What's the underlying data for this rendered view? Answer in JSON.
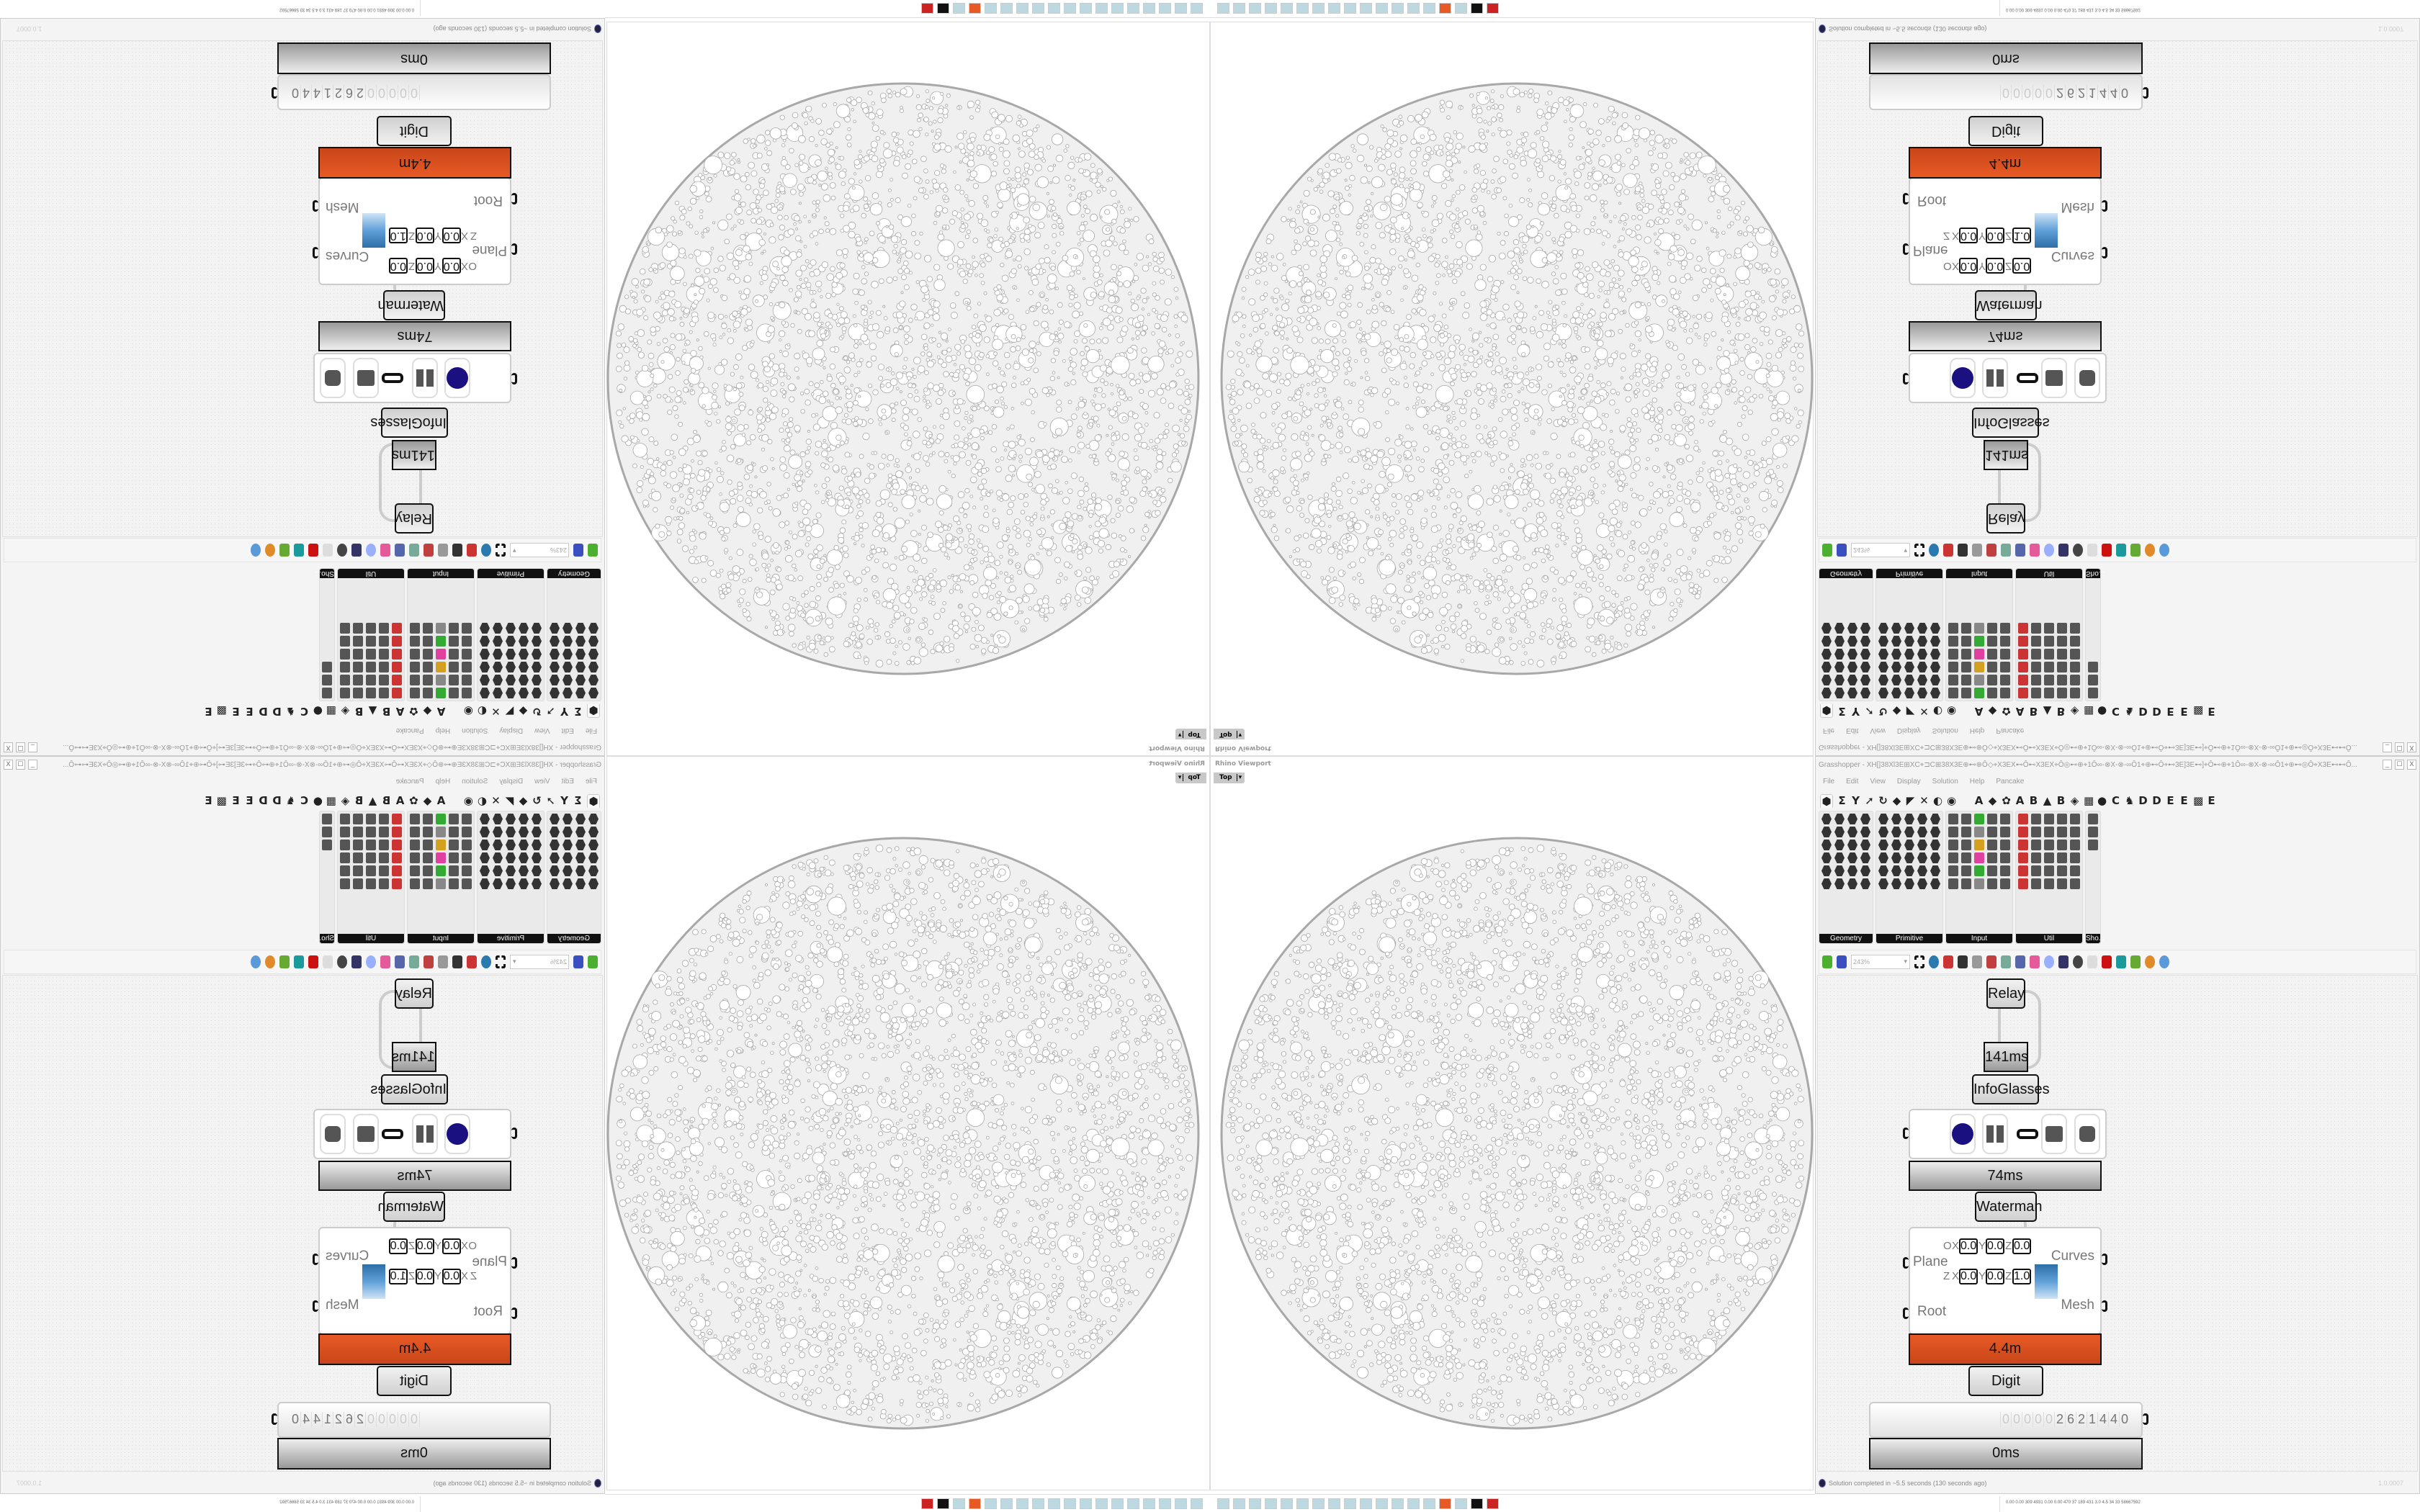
{
  "viewport": {
    "title": "Rhino Viewport",
    "view": "Top"
  },
  "grasshopper": {
    "title": "Grasshopper - XH[]38Xl3E⊞XC⌖⊐C⊞38X3E⊕⊷⊕Ô◇⌖X3EX⊷Ô⊷X3EX⌖Ô◎⊷⊕⌖1Ô∞-⊗X-⊗-∞Ô1⌖⊕⊷Ô⌖⊷3E]3E⊷]⌖Ô⊷⊕⌖1Ô∞-⊗X-⊗-∞Ô1⌖⊕⊷◎Ô⌖X3E⊷⊷Ô...",
    "window_buttons": [
      "_",
      "☐",
      "X"
    ],
    "menu": [
      "File",
      "Edit",
      "View",
      "Display",
      "Solution",
      "Help",
      "Pancake"
    ],
    "tabs": [
      "⬢",
      "Σ",
      "Y",
      "➚",
      "↻",
      "◆",
      "◤",
      "✕",
      "◐",
      "◉",
      "",
      "A",
      "◆",
      "✿",
      "A",
      "B",
      "▲",
      "B",
      "◈",
      "▦",
      "●",
      "C",
      "♞",
      "D",
      "D",
      "E",
      "E",
      "▩",
      "E"
    ],
    "groups": [
      "Geometry",
      "Primitive",
      "Input",
      "Util",
      "Sho..."
    ],
    "zoom_level": "243%",
    "components": {
      "relay": "Relay",
      "infoglasses_time": "141ms",
      "infoglasses": "InfoGlasses",
      "waterman_time": "74ms",
      "waterman": "Waterman",
      "waterman_inputs": [
        "Plane",
        "Root"
      ],
      "waterman_outputs": [
        "Curves",
        "Mesh"
      ],
      "plane_rows": [
        {
          "label": "O",
          "x": "0.0",
          "y": "0.0",
          "z": "0.0"
        },
        {
          "label": "Z",
          "x": "0.0",
          "y": "0.0",
          "z": "1.0"
        }
      ],
      "axis": [
        "X",
        "Y",
        "Z"
      ],
      "scroller_time": "4.4m",
      "digit_scroller": "Digit Scroller",
      "digits": [
        "0",
        "0",
        "0",
        "0",
        "0",
        "2",
        "6",
        "2",
        "1",
        "4",
        "4",
        "0"
      ],
      "digit_time": "0ms"
    },
    "status": "Solution completed in ~5.5 seconds (130 seconds ago)",
    "version": "1.0.0007",
    "perf_strip": "0.00 0.00 309 4931 0.00 0.00 470 37 189 431 3.0 4.5 34 33 58667592"
  },
  "colors": {
    "timing_heavy": "#d9501e",
    "timing_normal": "#b8b8b8",
    "geometry_stroke": "#a8a8a8",
    "infoglasses_icon": "#1a1080"
  }
}
